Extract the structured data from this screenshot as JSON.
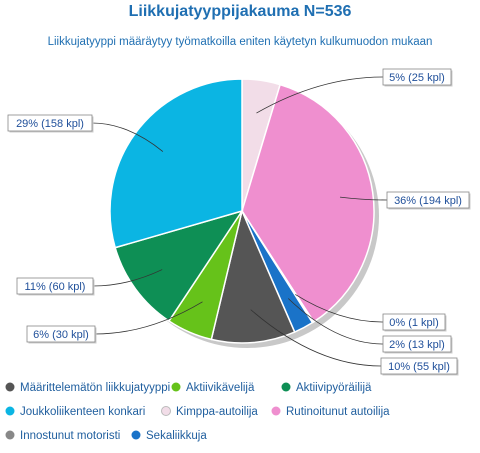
{
  "chart_data": {
    "type": "pie",
    "title": "Liikkujatyyppijakauma N=536",
    "subtitle": "Liikkujatyyppi määräytyy työmatkoilla eniten käytetyn kulkumuodon mukaan",
    "slices": [
      {
        "name": "Kimppa-autoilija",
        "value": 25,
        "label": "5% (25 kpl)",
        "color": "#f2dde8"
      },
      {
        "name": "Rutinoitunut autoilija",
        "value": 194,
        "label": "36% (194 kpl)",
        "color": "#ef8fcf"
      },
      {
        "name": "Innostunut motoristi",
        "value": 1,
        "label": "0% (1 kpl)",
        "color": "#888888"
      },
      {
        "name": "Sekaliikkuja",
        "value": 13,
        "label": "2% (13 kpl)",
        "color": "#1a73c8"
      },
      {
        "name": "Määrittelemätön liikkujatyyppi",
        "value": 55,
        "label": "10% (55 kpl)",
        "color": "#555555"
      },
      {
        "name": "Aktiivikävelijä",
        "value": 30,
        "label": "6% (30 kpl)",
        "color": "#66c21a"
      },
      {
        "name": "Aktiivipyöräilijä",
        "value": 60,
        "label": "11% (60 kpl)",
        "color": "#0e8f55"
      },
      {
        "name": "Joukkoliikenteen konkari",
        "value": 158,
        "label": "29% (158 kpl)",
        "color": "#0bb5e3"
      }
    ],
    "legend": [
      {
        "name": "Määrittelemätön liikkujatyyppi",
        "color": "#555555"
      },
      {
        "name": "Aktiivikävelijä",
        "color": "#66c21a"
      },
      {
        "name": "Aktiivipyöräilijä",
        "color": "#0e8f55"
      },
      {
        "name": "Joukkoliikenteen konkari",
        "color": "#0bb5e3"
      },
      {
        "name": "Kimppa-autoilija",
        "color": "#f2dde8"
      },
      {
        "name": "Rutinoitunut autoilija",
        "color": "#ef8fcf"
      },
      {
        "name": "Innostunut motoristi",
        "color": "#888888"
      },
      {
        "name": "Sekaliikkuja",
        "color": "#1a73c8"
      }
    ],
    "legend_position": "bottom"
  }
}
